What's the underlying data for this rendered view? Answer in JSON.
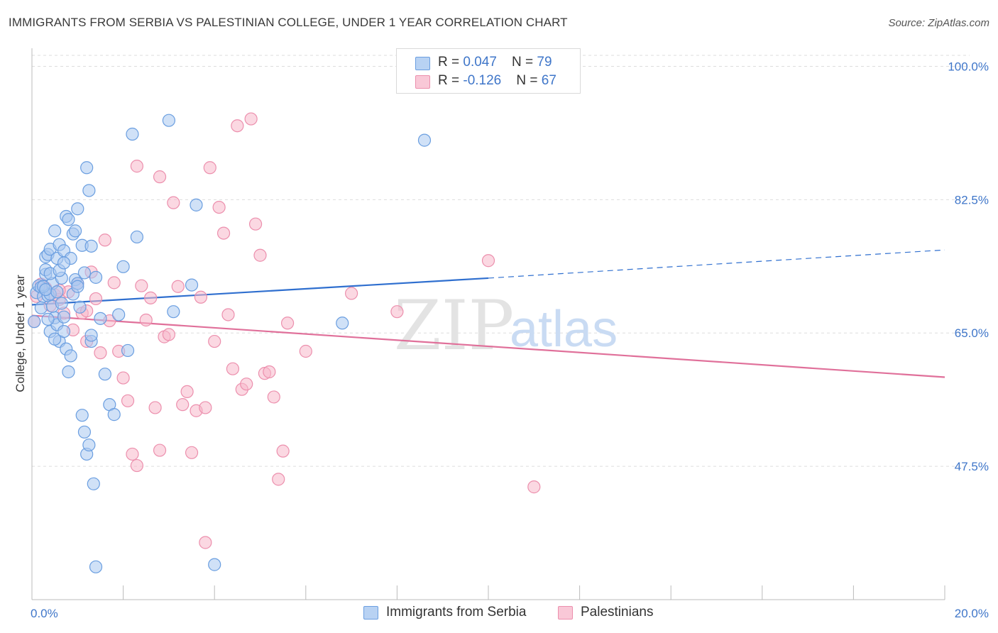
{
  "title": "IMMIGRANTS FROM SERBIA VS PALESTINIAN COLLEGE, UNDER 1 YEAR CORRELATION CHART",
  "source": "Source: ZipAtlas.com",
  "colors": {
    "blue_fill": "#a9c8f0",
    "blue_stroke": "#6a9ee0",
    "blue_line": "#2f6fcf",
    "pink_fill": "#f7b8cb",
    "pink_stroke": "#ec8fad",
    "pink_line": "#e0709a",
    "axis_text": "#3f76c9",
    "grid": "#dddddd"
  },
  "legend": {
    "rows": [
      {
        "r_label": "R = ",
        "r_value": "0.047",
        "n_label": "N = ",
        "n_value": "79"
      },
      {
        "r_label": "R = ",
        "r_value": "-0.126",
        "n_label": "N = ",
        "n_value": "67"
      }
    ],
    "bottom": [
      "Immigrants from Serbia",
      "Palestinians"
    ]
  },
  "watermark": {
    "zip": "ZIP",
    "atlas": "atlas"
  },
  "chart_data": {
    "type": "scatter",
    "title": "IMMIGRANTS FROM SERBIA VS PALESTINIAN COLLEGE, UNDER 1 YEAR CORRELATION CHART",
    "xlabel": "",
    "ylabel": "College, Under 1 year",
    "xlim": [
      0,
      20
    ],
    "ylim": [
      30,
      102
    ],
    "x_tick_labels": [
      "0.0%",
      "20.0%"
    ],
    "y_ticks": [
      47.5,
      65.0,
      82.5,
      100.0
    ],
    "y_tick_labels": [
      "47.5%",
      "65.0%",
      "82.5%",
      "100.0%"
    ],
    "grid": true,
    "legend_placement": "top-center",
    "series": [
      {
        "name": "Immigrants from Serbia",
        "r": 0.047,
        "n": 79,
        "trend": {
          "x": [
            0,
            10
          ],
          "y": [
            68.7,
            72.2
          ],
          "dashed_to": [
            20,
            75.9
          ]
        },
        "points": [
          [
            0.05,
            66.5
          ],
          [
            0.1,
            70.3
          ],
          [
            0.15,
            71.2
          ],
          [
            0.2,
            71.0
          ],
          [
            0.25,
            69.8
          ],
          [
            0.3,
            72.7
          ],
          [
            0.3,
            73.3
          ],
          [
            0.35,
            69.9
          ],
          [
            0.4,
            70.1
          ],
          [
            0.4,
            65.2
          ],
          [
            0.45,
            71.5
          ],
          [
            0.5,
            67.0
          ],
          [
            0.55,
            66.1
          ],
          [
            0.6,
            63.9
          ],
          [
            0.65,
            72.2
          ],
          [
            0.7,
            67.1
          ],
          [
            0.7,
            65.2
          ],
          [
            0.75,
            62.9
          ],
          [
            0.8,
            59.9
          ],
          [
            0.85,
            62.0
          ],
          [
            0.9,
            70.1
          ],
          [
            0.95,
            72.0
          ],
          [
            1.0,
            71.5
          ],
          [
            1.0,
            71.1
          ],
          [
            1.05,
            68.4
          ],
          [
            1.1,
            54.2
          ],
          [
            1.15,
            52.0
          ],
          [
            1.2,
            49.1
          ],
          [
            1.25,
            50.3
          ],
          [
            1.3,
            63.9
          ],
          [
            1.35,
            45.2
          ],
          [
            1.4,
            34.3
          ],
          [
            0.3,
            75.0
          ],
          [
            0.35,
            75.3
          ],
          [
            0.4,
            76.0
          ],
          [
            0.5,
            78.4
          ],
          [
            0.55,
            74.8
          ],
          [
            0.6,
            76.6
          ],
          [
            0.7,
            75.8
          ],
          [
            0.75,
            80.3
          ],
          [
            0.8,
            79.9
          ],
          [
            0.85,
            74.8
          ],
          [
            0.9,
            78.0
          ],
          [
            0.95,
            78.4
          ],
          [
            1.0,
            81.3
          ],
          [
            1.1,
            76.5
          ],
          [
            1.2,
            86.7
          ],
          [
            1.25,
            83.7
          ],
          [
            1.3,
            76.4
          ],
          [
            1.4,
            72.3
          ],
          [
            1.5,
            66.9
          ],
          [
            1.6,
            59.6
          ],
          [
            1.7,
            55.6
          ],
          [
            1.8,
            54.3
          ],
          [
            1.9,
            67.4
          ],
          [
            2.0,
            73.7
          ],
          [
            2.1,
            62.7
          ],
          [
            2.2,
            91.1
          ],
          [
            2.3,
            77.6
          ],
          [
            3.0,
            92.9
          ],
          [
            3.1,
            67.8
          ],
          [
            3.5,
            71.3
          ],
          [
            3.6,
            81.8
          ],
          [
            4.0,
            34.6
          ],
          [
            6.8,
            66.3
          ],
          [
            8.6,
            90.3
          ],
          [
            0.2,
            68.3
          ],
          [
            0.25,
            71.1
          ],
          [
            0.3,
            70.7
          ],
          [
            0.35,
            66.8
          ],
          [
            0.4,
            72.8
          ],
          [
            0.45,
            68.5
          ],
          [
            0.5,
            64.2
          ],
          [
            0.55,
            70.4
          ],
          [
            0.6,
            73.2
          ],
          [
            0.65,
            68.9
          ],
          [
            0.7,
            74.2
          ],
          [
            1.15,
            72.9
          ],
          [
            1.3,
            64.7
          ]
        ]
      },
      {
        "name": "Palestinians",
        "r": -0.126,
        "n": 67,
        "trend": {
          "x": [
            0,
            20
          ],
          "y": [
            67.3,
            59.2
          ]
        },
        "points": [
          [
            0.05,
            66.5
          ],
          [
            0.1,
            69.8
          ],
          [
            0.2,
            71.4
          ],
          [
            0.3,
            70.9
          ],
          [
            0.4,
            68.6
          ],
          [
            0.5,
            70.0
          ],
          [
            0.6,
            69.4
          ],
          [
            0.7,
            67.6
          ],
          [
            0.8,
            70.4
          ],
          [
            0.9,
            65.4
          ],
          [
            1.0,
            71.5
          ],
          [
            1.1,
            67.6
          ],
          [
            1.2,
            63.9
          ],
          [
            1.3,
            73.0
          ],
          [
            1.4,
            69.5
          ],
          [
            1.5,
            62.4
          ],
          [
            1.6,
            77.2
          ],
          [
            1.7,
            66.6
          ],
          [
            1.8,
            71.6
          ],
          [
            1.9,
            62.6
          ],
          [
            2.0,
            59.1
          ],
          [
            2.1,
            56.1
          ],
          [
            2.2,
            49.1
          ],
          [
            2.3,
            47.6
          ],
          [
            2.4,
            71.2
          ],
          [
            2.5,
            66.7
          ],
          [
            2.6,
            69.6
          ],
          [
            2.7,
            55.2
          ],
          [
            2.8,
            49.6
          ],
          [
            2.9,
            64.5
          ],
          [
            3.0,
            64.8
          ],
          [
            3.1,
            82.1
          ],
          [
            3.2,
            71.1
          ],
          [
            3.3,
            55.6
          ],
          [
            3.4,
            57.3
          ],
          [
            3.5,
            49.3
          ],
          [
            3.6,
            54.8
          ],
          [
            3.7,
            69.7
          ],
          [
            3.8,
            55.2
          ],
          [
            3.9,
            86.7
          ],
          [
            4.0,
            63.9
          ],
          [
            4.1,
            81.5
          ],
          [
            4.2,
            78.1
          ],
          [
            4.3,
            67.4
          ],
          [
            4.4,
            60.3
          ],
          [
            4.5,
            92.2
          ],
          [
            4.6,
            57.6
          ],
          [
            4.7,
            58.3
          ],
          [
            4.8,
            93.1
          ],
          [
            4.9,
            79.3
          ],
          [
            5.0,
            75.2
          ],
          [
            5.1,
            59.7
          ],
          [
            5.2,
            59.9
          ],
          [
            5.3,
            56.6
          ],
          [
            5.4,
            45.8
          ],
          [
            5.5,
            49.5
          ],
          [
            5.6,
            66.3
          ],
          [
            6.0,
            62.6
          ],
          [
            7.0,
            70.2
          ],
          [
            8.0,
            67.8
          ],
          [
            10.0,
            74.5
          ],
          [
            11.0,
            44.8
          ],
          [
            3.8,
            37.5
          ],
          [
            2.3,
            86.9
          ],
          [
            2.8,
            85.5
          ],
          [
            0.6,
            70.6
          ],
          [
            1.2,
            67.9
          ]
        ]
      }
    ]
  }
}
